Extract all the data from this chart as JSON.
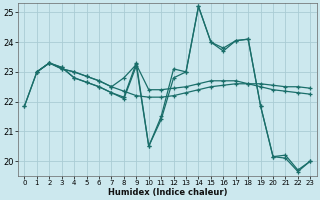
{
  "xlabel": "Humidex (Indice chaleur)",
  "xlim": [
    -0.5,
    23.5
  ],
  "ylim": [
    19.5,
    25.3
  ],
  "yticks": [
    20,
    21,
    22,
    23,
    24,
    25
  ],
  "xticks": [
    0,
    1,
    2,
    3,
    4,
    5,
    6,
    7,
    8,
    9,
    10,
    11,
    12,
    13,
    14,
    15,
    16,
    17,
    18,
    19,
    20,
    21,
    22,
    23
  ],
  "background_color": "#cce8ee",
  "grid_color": "#aaccd4",
  "line_color": "#1a6e6a",
  "lines": [
    {
      "x": [
        0,
        1,
        2,
        3,
        4,
        5,
        6,
        7,
        8,
        9,
        10,
        11,
        12,
        13,
        14,
        15,
        16,
        17,
        18,
        19,
        20,
        21,
        22,
        23
      ],
      "y": [
        21.85,
        23.0,
        23.3,
        23.1,
        23.0,
        22.85,
        22.7,
        22.5,
        22.35,
        22.2,
        22.15,
        22.15,
        22.2,
        22.3,
        22.4,
        22.5,
        22.55,
        22.6,
        22.6,
        22.6,
        22.55,
        22.5,
        22.5,
        22.45
      ]
    },
    {
      "x": [
        0,
        1,
        2,
        3,
        4,
        5,
        6,
        7,
        8,
        9,
        10,
        11,
        12,
        13,
        14,
        15,
        16,
        17,
        18,
        19,
        20,
        21,
        22,
        23
      ],
      "y": [
        21.85,
        23.0,
        23.3,
        23.1,
        23.0,
        22.85,
        22.7,
        22.5,
        22.8,
        23.25,
        22.4,
        22.4,
        22.45,
        22.5,
        22.6,
        22.7,
        22.7,
        22.7,
        22.6,
        22.5,
        22.4,
        22.35,
        22.3,
        22.25
      ]
    },
    {
      "x": [
        1,
        2,
        3,
        4,
        5,
        6,
        7,
        8,
        9,
        10,
        11,
        12,
        13,
        14,
        15,
        16,
        17,
        18,
        19,
        20,
        21,
        22,
        23
      ],
      "y": [
        23.0,
        23.3,
        23.15,
        22.8,
        22.65,
        22.5,
        22.3,
        22.15,
        23.3,
        20.5,
        21.5,
        23.1,
        23.0,
        25.2,
        24.0,
        23.8,
        24.05,
        24.1,
        21.85,
        20.15,
        20.2,
        19.7,
        20.0
      ]
    },
    {
      "x": [
        1,
        2,
        3,
        4,
        5,
        6,
        7,
        8,
        9,
        10,
        11,
        12,
        13,
        14,
        15,
        16,
        17,
        18,
        19,
        20,
        21,
        22,
        23
      ],
      "y": [
        23.0,
        23.3,
        23.15,
        22.8,
        22.65,
        22.5,
        22.3,
        22.1,
        23.2,
        20.5,
        21.4,
        22.8,
        23.0,
        25.2,
        24.0,
        23.7,
        24.05,
        24.1,
        21.85,
        20.15,
        20.1,
        19.65,
        20.0
      ]
    }
  ]
}
